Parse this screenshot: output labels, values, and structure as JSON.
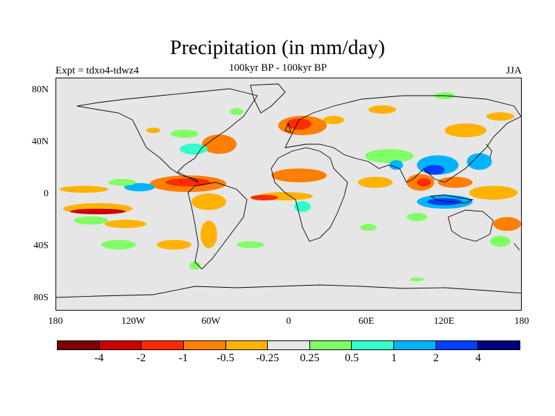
{
  "header": {
    "title": "Precipitation (in mm/day)",
    "subtitle": "100kyr BP - 100kyr BP",
    "experiment": "Expt = tdxo4-tdwz4",
    "season": "JJA"
  },
  "map": {
    "projection": "cylindrical-equidistant",
    "background_color": "#e6e6e6",
    "lat_ticks": [
      "80N",
      "40N",
      "0",
      "40S",
      "80S"
    ],
    "lon_ticks": [
      "180",
      "120W",
      "60W",
      "0",
      "60E",
      "120E",
      "180"
    ]
  },
  "colorbar": {
    "colors": [
      "#7f0000",
      "#cc0000",
      "#ff2a00",
      "#ff7f00",
      "#ffb300",
      "#e6e6e6",
      "#80ff66",
      "#33ffcc",
      "#00b3ff",
      "#0040ff",
      "#00007f"
    ],
    "labels": [
      "-4",
      "-2",
      "-1",
      "-0.5",
      "-0.25",
      "0.25",
      "0.5",
      "1",
      "2",
      "4"
    ]
  }
}
